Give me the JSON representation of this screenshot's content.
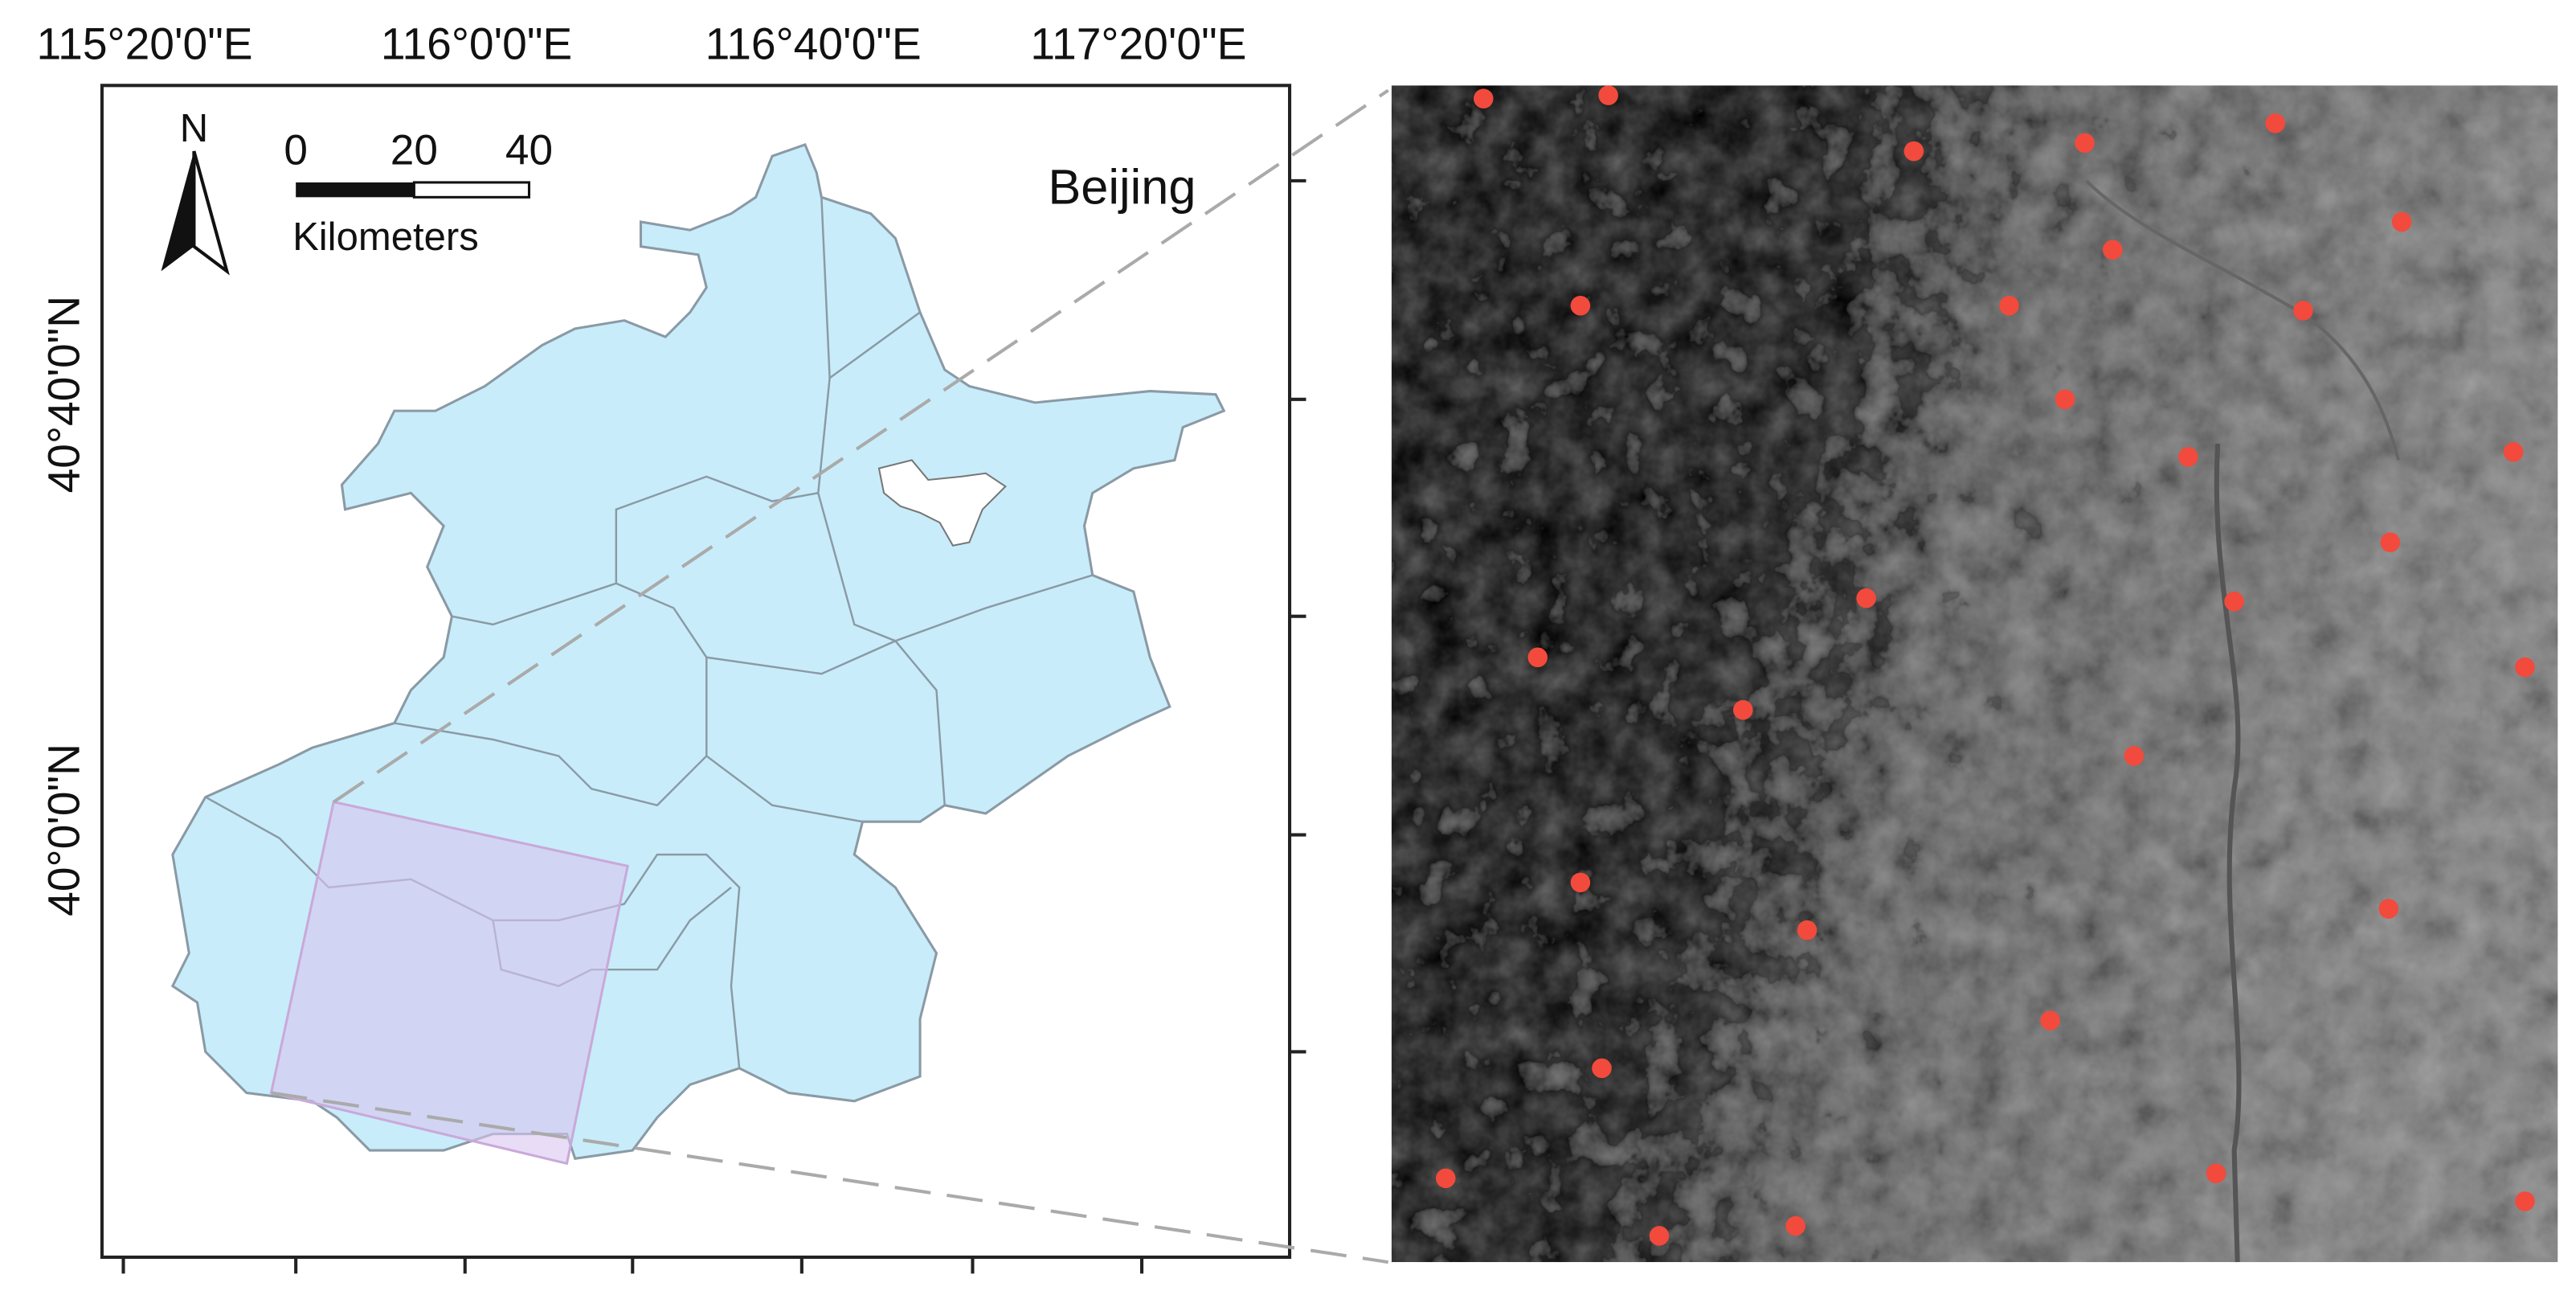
{
  "map": {
    "lon_labels": [
      "115°20'0\"E",
      "116°0'0\"E",
      "116°40'0\"E",
      "117°20'0\"E"
    ],
    "lat_labels": [
      "40°40'0\"N",
      "40°0'0\"N"
    ],
    "north_arrow": "N",
    "scale_bar": {
      "ticks": [
        0,
        20,
        40
      ],
      "unit": "Kilometers"
    },
    "region_label": "Beijing"
  }
}
